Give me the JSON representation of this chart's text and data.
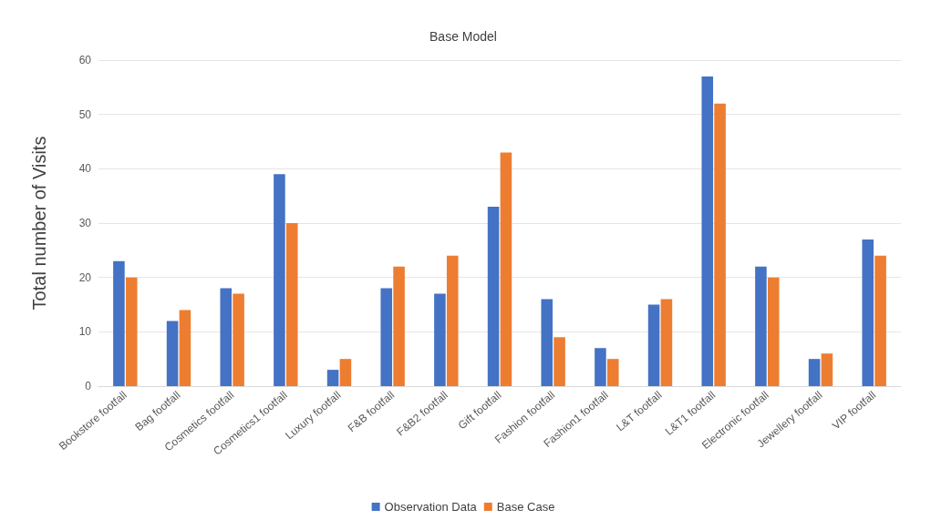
{
  "chart_data": {
    "type": "bar",
    "title": "Base Model",
    "ylabel": "Total number of Visits",
    "categories": [
      "Bookstore footfall",
      "Bag footfall",
      "Cosmetics footfall",
      "Cosmetics1 footfall",
      "Luxury footfall",
      "F&B footfall",
      "F&B2 footfall",
      "Gift footfall",
      "Fashion footfall",
      "Fashion1 footfall",
      "L&T footfall",
      "L&T1 footfall",
      "Electronic footfall",
      "Jewellery footfall",
      "VIP footfall"
    ],
    "series": [
      {
        "name": "Observation Data",
        "color": "#4472c4",
        "values": [
          23,
          12,
          18,
          39,
          3,
          18,
          17,
          33,
          16,
          7,
          15,
          57,
          22,
          5,
          27
        ]
      },
      {
        "name": "Base Case",
        "color": "#ed7d31",
        "values": [
          20,
          14,
          17,
          30,
          5,
          22,
          24,
          43,
          9,
          5,
          16,
          52,
          20,
          6,
          24
        ]
      }
    ],
    "ylim": [
      0,
      60
    ],
    "yticks": [
      0,
      10,
      20,
      30,
      40,
      50,
      60
    ],
    "grid": "y",
    "legend": "bottom"
  }
}
